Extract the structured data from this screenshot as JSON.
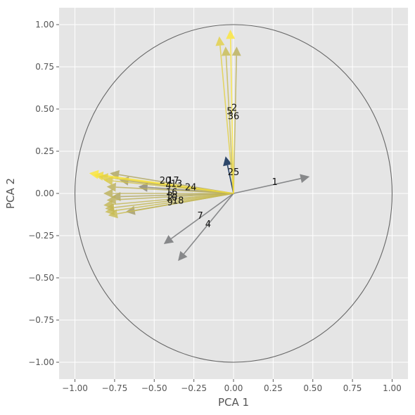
{
  "chart_data": {
    "type": "biplot",
    "xlabel": "PCA 1",
    "ylabel": "PCA 2",
    "xlim": [
      -1.1,
      1.1
    ],
    "ylim": [
      -1.1,
      1.1
    ],
    "xticks": [
      -1.0,
      -0.75,
      -0.5,
      -0.25,
      0.0,
      0.25,
      0.5,
      0.75,
      1.0
    ],
    "yticks": [
      -1.0,
      -0.75,
      -0.5,
      -0.25,
      0.0,
      0.25,
      0.5,
      0.75,
      1.0
    ],
    "xtick_labels": [
      "−1.00",
      "−0.75",
      "−0.50",
      "−0.25",
      "0.00",
      "0.25",
      "0.50",
      "0.75",
      "1.00"
    ],
    "ytick_labels": [
      "−1.00",
      "−0.75",
      "−0.50",
      "−0.25",
      "0.00",
      "0.25",
      "0.50",
      "0.75",
      "1.00"
    ],
    "grid": true,
    "unit_circle": true,
    "colors": {
      "background": "#e5e5e5",
      "grid": "#ffffff",
      "circle": "#666666",
      "arrow_low": "#00204c",
      "arrow_mid": "#7c7b78",
      "arrow_high": "#fde737"
    },
    "vectors": [
      {
        "x": -0.05,
        "y": 0.22,
        "c": 0.0
      },
      {
        "x": 0.48,
        "y": 0.1,
        "c": 0.45
      },
      {
        "x": -0.44,
        "y": -0.3,
        "c": 0.45
      },
      {
        "x": -0.35,
        "y": -0.4,
        "c": 0.45
      },
      {
        "x": -0.6,
        "y": 0.04,
        "c": 0.55
      },
      {
        "x": -0.68,
        "y": -0.11,
        "c": 0.65
      },
      {
        "x": -0.72,
        "y": 0.08,
        "c": 0.65
      },
      {
        "x": -0.78,
        "y": 0.12,
        "c": 0.7
      },
      {
        "x": -0.77,
        "y": -0.02,
        "c": 0.7
      },
      {
        "x": -0.8,
        "y": 0.04,
        "c": 0.75
      },
      {
        "x": -0.82,
        "y": 0.0,
        "c": 0.75
      },
      {
        "x": -0.8,
        "y": -0.04,
        "c": 0.75
      },
      {
        "x": -0.82,
        "y": -0.07,
        "c": 0.78
      },
      {
        "x": -0.81,
        "y": -0.11,
        "c": 0.8
      },
      {
        "x": -0.79,
        "y": -0.13,
        "c": 0.8
      },
      {
        "x": -0.82,
        "y": 0.08,
        "c": 0.85
      },
      {
        "x": -0.88,
        "y": 0.11,
        "c": 0.95
      },
      {
        "x": -0.91,
        "y": 0.12,
        "c": 1.0
      },
      {
        "x": -0.85,
        "y": 0.1,
        "c": 0.9
      },
      {
        "x": -0.81,
        "y": -0.09,
        "c": 0.78
      },
      {
        "x": 0.02,
        "y": 0.87,
        "c": 0.75
      },
      {
        "x": -0.05,
        "y": 0.87,
        "c": 0.8
      },
      {
        "x": -0.09,
        "y": 0.93,
        "c": 0.9
      },
      {
        "x": -0.02,
        "y": 0.97,
        "c": 1.0
      }
    ],
    "labels": [
      {
        "text": "1",
        "x": 0.26,
        "y": 0.07
      },
      {
        "text": "2",
        "x": 0.005,
        "y": 0.51
      },
      {
        "text": "5",
        "x": -0.025,
        "y": 0.49
      },
      {
        "text": "36",
        "x": 0.0,
        "y": 0.46
      },
      {
        "text": "25",
        "x": 0.0,
        "y": 0.13
      },
      {
        "text": "24",
        "x": -0.27,
        "y": 0.04
      },
      {
        "text": "7",
        "x": -0.21,
        "y": -0.13
      },
      {
        "text": "4",
        "x": -0.16,
        "y": -0.18
      },
      {
        "text": "20",
        "x": -0.43,
        "y": 0.08
      },
      {
        "text": "17",
        "x": -0.38,
        "y": 0.08
      },
      {
        "text": "13",
        "x": -0.36,
        "y": 0.06
      },
      {
        "text": "4",
        "x": -0.41,
        "y": 0.05
      },
      {
        "text": "16",
        "x": -0.39,
        "y": 0.01
      },
      {
        "text": "3",
        "x": -0.4,
        "y": -0.01
      },
      {
        "text": "10",
        "x": -0.39,
        "y": -0.02
      },
      {
        "text": "18",
        "x": -0.35,
        "y": -0.04
      },
      {
        "text": "9",
        "x": -0.4,
        "y": -0.05
      }
    ]
  }
}
